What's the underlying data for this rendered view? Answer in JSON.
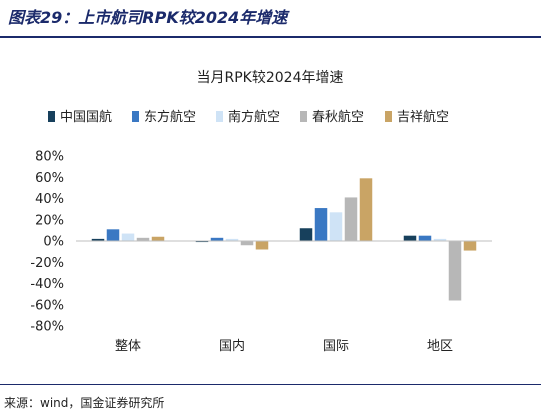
{
  "figure": {
    "header": "图表29：上市航司RPK较2024年增速",
    "source": "来源：wind，国金证券研究所"
  },
  "chart_data": {
    "type": "bar",
    "title": "当月RPK较2024年增速",
    "categories": [
      "整体",
      "国内",
      "国际",
      "地区"
    ],
    "series": [
      {
        "name": "中国国航",
        "color": "#17405c",
        "values": [
          2,
          -1,
          12,
          5
        ]
      },
      {
        "name": "东方航空",
        "color": "#3a78c3",
        "values": [
          11,
          3,
          31,
          5
        ]
      },
      {
        "name": "南方航空",
        "color": "#cfe3f6",
        "values": [
          7,
          2,
          27,
          2
        ]
      },
      {
        "name": "春秋航空",
        "color": "#b7b7b7",
        "values": [
          3,
          -4,
          41,
          -56
        ]
      },
      {
        "name": "吉祥航空",
        "color": "#c9a465",
        "values": [
          4,
          -8,
          59,
          -9
        ]
      }
    ],
    "ylim": [
      -80,
      80
    ],
    "yticks": [
      80,
      60,
      40,
      20,
      0,
      -20,
      -40,
      -60,
      -80
    ],
    "ytick_labels": [
      "80%",
      "60%",
      "40%",
      "20%",
      "0%",
      "-20%",
      "-40%",
      "-60%",
      "-80%"
    ],
    "grid": false,
    "legend_position": "top",
    "xlabel": "",
    "ylabel": ""
  }
}
